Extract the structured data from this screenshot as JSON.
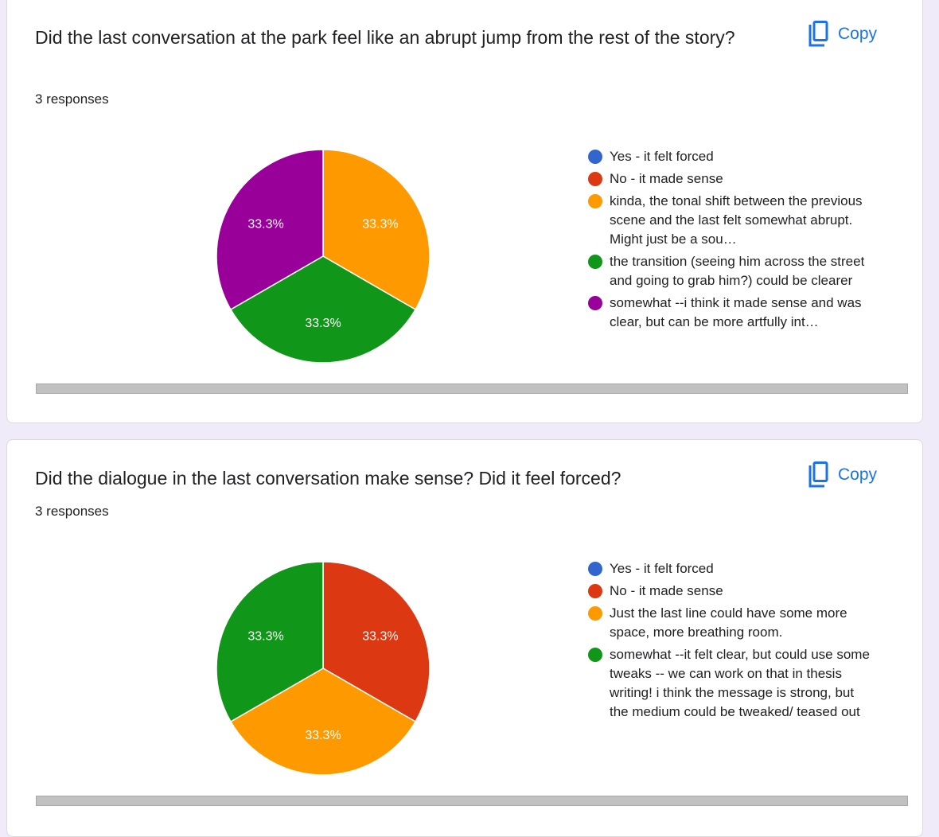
{
  "copy_label": "Copy",
  "questions": [
    {
      "title": "Did the last conversation at the park feel like an abrupt jump from the rest of the story?",
      "responses": "3 responses",
      "chart_data": {
        "type": "pie",
        "categories": [
          "Yes - it felt forced",
          "No - it made sense",
          "kinda, the tonal shift between the previous scene and the last felt somewhat abrupt. Might just be a sou…",
          "the transition (seeing him across the street and going to grab him?) could be clearer",
          "somewhat --i think it made sense and was clear, but can be more artfully int…"
        ],
        "colors": [
          "#3366cc",
          "#dc3912",
          "#ff9900",
          "#109618",
          "#990099"
        ],
        "values": [
          0,
          0,
          1,
          1,
          1
        ],
        "labels": [
          "",
          "",
          "33.3%",
          "33.3%",
          "33.3%"
        ]
      }
    },
    {
      "title": "Did the dialogue in the last conversation make sense? Did it feel forced?",
      "responses": "3 responses",
      "chart_data": {
        "type": "pie",
        "categories": [
          "Yes - it felt forced",
          "No - it made sense",
          "Just the last line could have some more space, more breathing room.",
          "somewhat --it felt clear, but could use some tweaks -- we can work on that in thesis writing! i think the message is strong, but the medium could be tweaked/ teased out"
        ],
        "colors": [
          "#3366cc",
          "#dc3912",
          "#ff9900",
          "#109618"
        ],
        "values": [
          0,
          1,
          1,
          1
        ],
        "labels": [
          "",
          "33.3%",
          "33.3%",
          "33.3%"
        ]
      }
    }
  ]
}
